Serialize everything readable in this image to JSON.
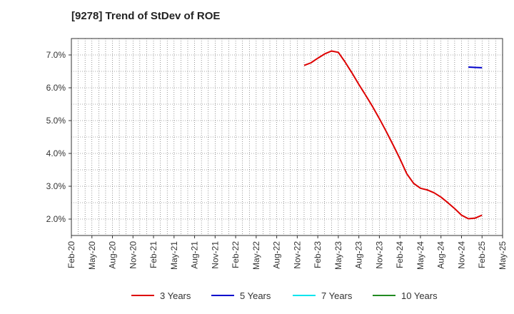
{
  "chart_data": {
    "type": "line",
    "title": "[9278]  Trend of StDev of ROE",
    "x_ticks": [
      "Feb-20",
      "May-20",
      "Aug-20",
      "Nov-20",
      "Feb-21",
      "May-21",
      "Aug-21",
      "Nov-21",
      "Feb-22",
      "May-22",
      "Aug-22",
      "Nov-22",
      "Feb-23",
      "May-23",
      "Aug-23",
      "Nov-23",
      "Feb-24",
      "May-24",
      "Aug-24",
      "Nov-24",
      "Feb-25",
      "May-25"
    ],
    "y_ticks": [
      "2.0%",
      "3.0%",
      "4.0%",
      "5.0%",
      "6.0%",
      "7.0%"
    ],
    "y_tick_values": [
      2,
      3,
      4,
      5,
      6,
      7
    ],
    "ylim": [
      1.5,
      7.5
    ],
    "grid": true,
    "legend_position": "bottom",
    "series": [
      {
        "name": "3 Years",
        "color": "#dd0000",
        "x": [
          "Dec-22",
          "Jan-23",
          "Feb-23",
          "Mar-23",
          "Apr-23",
          "May-23",
          "Jun-23",
          "Jul-23",
          "Aug-23",
          "Sep-23",
          "Oct-23",
          "Nov-23",
          "Dec-23",
          "Jan-24",
          "Feb-24",
          "Mar-24",
          "Apr-24",
          "May-24",
          "Jun-24",
          "Jul-24",
          "Aug-24",
          "Sep-24",
          "Oct-24",
          "Nov-24",
          "Dec-24",
          "Jan-25",
          "Feb-25"
        ],
        "values": [
          6.68,
          6.76,
          6.9,
          7.03,
          7.12,
          7.08,
          6.78,
          6.45,
          6.1,
          5.77,
          5.43,
          5.06,
          4.67,
          4.26,
          3.84,
          3.38,
          3.09,
          2.94,
          2.89,
          2.8,
          2.67,
          2.5,
          2.32,
          2.12,
          2.01,
          2.03,
          2.12
        ]
      },
      {
        "name": "5 Years",
        "color": "#0000cc",
        "x": [
          "Dec-24",
          "Jan-25",
          "Feb-25"
        ],
        "values": [
          6.63,
          6.62,
          6.61
        ]
      },
      {
        "name": "7 Years",
        "color": "#00e5ee",
        "x": [],
        "values": []
      },
      {
        "name": "10 Years",
        "color": "#228b22",
        "x": [],
        "values": []
      }
    ]
  }
}
